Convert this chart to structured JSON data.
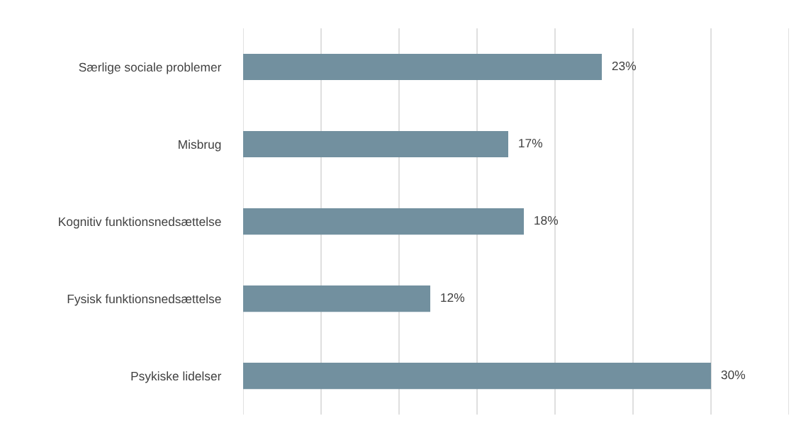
{
  "chart_data": {
    "type": "bar",
    "orientation": "horizontal",
    "categories": [
      "Særlige sociale problemer",
      "Misbrug",
      "Kognitiv funktionsnedsættelse",
      "Fysisk funktionsnedsættelse",
      "Psykiske lidelser"
    ],
    "values": [
      23,
      17,
      18,
      12,
      30
    ],
    "value_labels": [
      "23%",
      "17%",
      "18%",
      "12%",
      "30%"
    ],
    "color": "#72909f",
    "xlim": [
      0,
      35
    ],
    "xticks": [
      {
        "value": 0,
        "label": null
      },
      {
        "value": 5,
        "label": null
      },
      {
        "value": 10,
        "label": null
      },
      {
        "value": 15,
        "label": null
      },
      {
        "value": 20,
        "label": null
      },
      {
        "value": 25,
        "label": null
      },
      {
        "value": 30,
        "label": null
      },
      {
        "value": 35,
        "label": null
      }
    ],
    "grid": "x"
  }
}
